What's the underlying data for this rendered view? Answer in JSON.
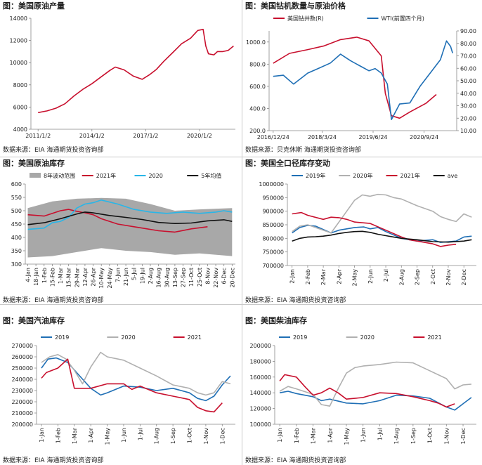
{
  "panels": [
    {
      "title": "图：美国原油产量",
      "source": "数据来源：EIA   海通期货投资咨询部",
      "chart_data": {
        "type": "line",
        "x_ticks": [
          "2011/1/2",
          "2014/1/2",
          "2017/1/2",
          "2020/1/2"
        ],
        "ylim": [
          4000,
          14000
        ],
        "y_ticks": [
          4000,
          6000,
          8000,
          10000,
          12000,
          14000
        ],
        "series": [
          {
            "color": "#c8102e",
            "x": [
              2011.0,
              2011.5,
              2012.0,
              2012.5,
              2013.0,
              2013.5,
              2014.0,
              2014.5,
              2015.0,
              2015.3,
              2015.8,
              2016.3,
              2016.8,
              2017.2,
              2017.6,
              2018.0,
              2018.5,
              2019.0,
              2019.5,
              2019.9,
              2020.2,
              2020.35,
              2020.5,
              2020.8,
              2021.0,
              2021.3,
              2021.6,
              2021.9
            ],
            "values": [
              5500,
              5650,
              5900,
              6300,
              7000,
              7600,
              8100,
              8700,
              9300,
              9600,
              9350,
              8800,
              8500,
              8900,
              9400,
              10100,
              10900,
              11700,
              12200,
              12900,
              13000,
              11500,
              10800,
              10700,
              11000,
              11000,
              11100,
              11500
            ]
          }
        ]
      }
    },
    {
      "title": "图：美国钻机数量与原油价格",
      "source": "数据来源：贝克休斯   海通期货投资咨询部",
      "chart_data": {
        "type": "line",
        "x_ticks": [
          "2016/12/24",
          "2018/3/24",
          "2019/6/24",
          "2020/9/24"
        ],
        "ylim": [
          200,
          1100
        ],
        "y_ticks": [
          200,
          400,
          600,
          800,
          1000
        ],
        "y2lim": [
          10,
          90
        ],
        "y2_ticks": [
          10,
          20,
          30,
          40,
          50,
          60,
          70,
          80,
          90
        ],
        "series": [
          {
            "name": "美国钻井数(R)",
            "color": "#c8102e",
            "axis": "right",
            "x": [
              0.0,
              0.08,
              0.17,
              0.25,
              0.33,
              0.41,
              0.47,
              0.5,
              0.53,
              0.55,
              0.58,
              0.62,
              0.67,
              0.75,
              0.8
            ],
            "values": [
              64,
              72,
              75,
              78,
              83,
              85,
              82,
              76,
              70,
              40,
              22,
              20,
              25,
              32,
              39
            ]
          },
          {
            "name": "WTI(前置四个月)",
            "color": "#1f6fb5",
            "axis": "left",
            "x": [
              0.0,
              0.05,
              0.1,
              0.17,
              0.22,
              0.28,
              0.33,
              0.38,
              0.43,
              0.47,
              0.5,
              0.53,
              0.56,
              0.58,
              0.62,
              0.67,
              0.72,
              0.77,
              0.82,
              0.85,
              0.87,
              0.88
            ],
            "values": [
              690,
              700,
              620,
              720,
              760,
              810,
              890,
              830,
              780,
              740,
              760,
              720,
              620,
              300,
              440,
              450,
              600,
              720,
              840,
              1010,
              960,
              900
            ]
          }
        ]
      }
    },
    {
      "title": "图：美国原油库存",
      "source": "数据来源：EIA   海通期货投资咨询部",
      "chart_data": {
        "type": "area",
        "x_ticks": [
          "4-Jan",
          "18-Jan",
          "1-Feb",
          "15-Feb",
          "1-Mar",
          "15-Mar",
          "29-Mar",
          "12-Apr",
          "26-Apr",
          "10-May",
          "24-May",
          "7-Jun",
          "21-Jun",
          "5-Jul",
          "19-Jul",
          "2-Aug",
          "16-Aug",
          "30-Aug",
          "13-Sep",
          "27-Sep",
          "11-Oct",
          "25-Oct",
          "8-Nov",
          "22-Nov",
          "6-Dec",
          "20-Dec"
        ],
        "ylim": [
          300,
          600
        ],
        "y_ticks": [
          300,
          350,
          400,
          450,
          500,
          550,
          600
        ],
        "band": {
          "name": "8年波动范围",
          "color": "#a8a8a8",
          "x": [
            0,
            3,
            6,
            9,
            12,
            15,
            18,
            21,
            25
          ],
          "upper": [
            510,
            535,
            545,
            548,
            545,
            525,
            500,
            505,
            510
          ],
          "lower": [
            325,
            330,
            345,
            360,
            350,
            345,
            335,
            340,
            330
          ]
        },
        "series": [
          {
            "name": "2021年",
            "color": "#c8102e",
            "x": [
              0,
              2,
              4,
              5,
              6,
              7,
              8,
              9,
              11,
              13,
              14,
              16,
              18,
              20,
              22
            ],
            "values": [
              485,
              480,
              500,
              505,
              498,
              492,
              485,
              470,
              450,
              440,
              435,
              425,
              420,
              432,
              440
            ]
          },
          {
            "name": "2020",
            "color": "#29b6e8",
            "x": [
              0,
              2,
              3,
              4,
              5,
              6,
              7,
              8,
              9,
              11,
              13,
              15,
              17,
              19,
              21,
              23,
              24,
              25
            ],
            "values": [
              430,
              435,
              455,
              460,
              475,
              510,
              525,
              530,
              540,
              525,
              505,
              495,
              490,
              495,
              490,
              495,
              500,
              495
            ]
          },
          {
            "name": "5年均值",
            "color": "#111111",
            "x": [
              0,
              2,
              4,
              6,
              7,
              8,
              10,
              12,
              14,
              16,
              18,
              20,
              22,
              24,
              25
            ],
            "values": [
              448,
              455,
              470,
              488,
              495,
              492,
              482,
              475,
              467,
              456,
              452,
              454,
              462,
              466,
              460
            ]
          }
        ]
      }
    },
    {
      "title": "图：美国全口径库存变动",
      "source": "数据来源：EIA   海通期货投资咨询部",
      "chart_data": {
        "type": "line",
        "x_ticks": [
          "2-Jan",
          "2-Feb",
          "2-Mar",
          "2-Apr",
          "2-May",
          "2-Jun",
          "2-Jul",
          "2-Aug",
          "2-Sep",
          "2-Oct",
          "2-Nov",
          "2-Dec"
        ],
        "ylim": [
          700000,
          1000000
        ],
        "y_ticks": [
          700000,
          750000,
          800000,
          850000,
          900000,
          950000,
          1000000
        ],
        "series": [
          {
            "name": "2019年",
            "color": "#1f6fb5",
            "x": [
              0,
              0.5,
              1,
              1.5,
              2.5,
              3,
              4,
              4.6,
              5,
              5.5,
              6,
              7,
              8,
              9,
              9.5,
              10.5,
              11,
              11.5
            ],
            "values": [
              820000,
              840000,
              848000,
              845000,
              820000,
              830000,
              840000,
              842000,
              835000,
              840000,
              825000,
              800000,
              790000,
              795000,
              785000,
              790000,
              805000,
              808000
            ]
          },
          {
            "name": "2020年",
            "color": "#b0b0b0",
            "x": [
              0,
              0.5,
              1,
              2,
              2.5,
              3,
              3.5,
              4,
              4.5,
              5,
              5.5,
              6,
              6.5,
              7,
              8,
              9,
              9.5,
              10,
              10.5,
              11,
              11.5
            ],
            "values": [
              825000,
              845000,
              850000,
              830000,
              820000,
              860000,
              900000,
              940000,
              960000,
              955000,
              962000,
              960000,
              950000,
              945000,
              920000,
              900000,
              880000,
              870000,
              862000,
              890000,
              878000
            ]
          },
          {
            "name": "2021年",
            "color": "#c8102e",
            "x": [
              0,
              0.6,
              1,
              2,
              2.5,
              3,
              3.5,
              4,
              5,
              6,
              7,
              7.5,
              8,
              9,
              9.5,
              10,
              10.5
            ],
            "values": [
              890000,
              895000,
              885000,
              870000,
              878000,
              876000,
              870000,
              860000,
              855000,
              830000,
              805000,
              795000,
              790000,
              780000,
              770000,
              775000,
              778000
            ]
          },
          {
            "name": "ave",
            "color": "#111111",
            "x": [
              0,
              0.5,
              1,
              1.5,
              2,
              2.5,
              3,
              3.5,
              4,
              4.5,
              5,
              5.5,
              6,
              6.5,
              7,
              8,
              9,
              10,
              11,
              11.5
            ],
            "values": [
              790000,
              800000,
              805000,
              806000,
              808000,
              812000,
              818000,
              822000,
              825000,
              826000,
              822000,
              815000,
              810000,
              805000,
              800000,
              795000,
              788000,
              786000,
              790000,
              795000
            ]
          }
        ]
      }
    },
    {
      "title": "图：美国汽油库存",
      "source": "数据来源：EIA   海通期货投资咨询部",
      "chart_data": {
        "type": "line",
        "x_ticks": [
          "1-Jan",
          "1-Feb",
          "1-Mar",
          "1-Apr",
          "1-May",
          "1-Jun",
          "1-Jul",
          "1-Aug",
          "1-Sep",
          "1-Oct",
          "1-Nov",
          "1-Dec"
        ],
        "ylim": [
          200000,
          270000
        ],
        "y_ticks": [
          200000,
          210000,
          220000,
          230000,
          240000,
          250000,
          260000,
          270000
        ],
        "series": [
          {
            "name": "2019",
            "color": "#1f6fb5",
            "x": [
              0,
              0.4,
              0.9,
              1.6,
              2.2,
              3,
              3.6,
              4,
              5,
              6,
              7,
              8,
              9,
              9.5,
              10,
              10.5,
              11,
              11.5
            ],
            "values": [
              250000,
              258000,
              259000,
              255000,
              245000,
              232000,
              226000,
              228000,
              234000,
              233000,
              230000,
              232000,
              228000,
              223000,
              221000,
              225000,
              235000,
              243000
            ]
          },
          {
            "name": "2020",
            "color": "#b0b0b0",
            "x": [
              0,
              0.5,
              1,
              1.5,
              2,
              2.5,
              3,
              3.6,
              4,
              5,
              6,
              7,
              8,
              9,
              9.5,
              10,
              10.5,
              11,
              11.5
            ],
            "values": [
              255000,
              260000,
              262000,
              258000,
              248000,
              236000,
              251000,
              264000,
              260000,
              257000,
              250000,
              243000,
              235000,
              232000,
              228000,
              226000,
              228000,
              238000,
              236000
            ]
          },
          {
            "name": "2021",
            "color": "#c8102e",
            "x": [
              0,
              0.3,
              1,
              1.6,
              2,
              3,
              4,
              5,
              5.5,
              6,
              7,
              8,
              9,
              9.5,
              10,
              10.5,
              11
            ],
            "values": [
              241000,
              246000,
              250000,
              258000,
              232000,
              232000,
              236000,
              236000,
              231000,
              234000,
              228000,
              225000,
              222000,
              215000,
              212000,
              211000,
              219000
            ]
          }
        ]
      }
    },
    {
      "title": "图：美国柴油库存",
      "source": "数据来源：EIA   海通期货投资咨询部",
      "chart_data": {
        "type": "line",
        "x_ticks": [
          "1-Jan",
          "1-Feb",
          "1-Mar",
          "1-Apr",
          "1-May",
          "1-Jun",
          "1-Jul",
          "1-Aug",
          "1-Sep",
          "1-Oct",
          "1-Nov",
          "1-Dec"
        ],
        "ylim": [
          100000,
          200000
        ],
        "y_ticks": [
          100000,
          120000,
          140000,
          160000,
          180000,
          200000
        ],
        "series": [
          {
            "name": "2019",
            "color": "#1f6fb5",
            "x": [
              0,
              0.5,
              1,
              2,
              2.5,
              3,
              4,
              5,
              6,
              7,
              8,
              9,
              10,
              10.5,
              11,
              11.5
            ],
            "values": [
              140000,
              142000,
              139000,
              135000,
              130000,
              132000,
              127000,
              126000,
              130000,
              137000,
              136000,
              133000,
              122000,
              118000,
              126000,
              134000
            ]
          },
          {
            "name": "2020",
            "color": "#b0b0b0",
            "x": [
              0,
              0.5,
              1,
              2,
              2.5,
              3,
              3.5,
              4,
              4.5,
              5,
              6,
              7,
              8,
              8.5,
              9,
              10,
              10.5,
              11,
              11.5
            ],
            "values": [
              142000,
              148000,
              145000,
              138000,
              125000,
              123000,
              145000,
              165000,
              172000,
              174000,
              176000,
              179000,
              178000,
              173000,
              168000,
              158000,
              145000,
              150000,
              151000
            ]
          },
          {
            "name": "2021",
            "color": "#c8102e",
            "x": [
              0,
              0.3,
              1,
              1.5,
              2,
              2.5,
              3,
              3.5,
              4,
              5,
              6,
              7,
              8,
              9,
              9.5,
              10,
              10.5
            ],
            "values": [
              155000,
              163000,
              160000,
              148000,
              137000,
              140000,
              146000,
              140000,
              132000,
              134000,
              140000,
              139000,
              135000,
              130000,
              127000,
              122000,
              126000
            ]
          }
        ]
      }
    }
  ]
}
